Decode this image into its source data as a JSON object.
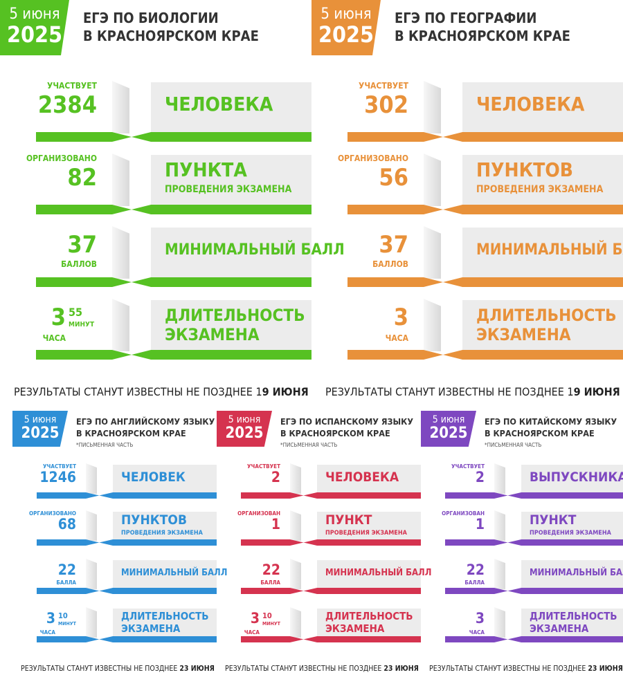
{
  "colors": {
    "green": "#56c122",
    "orange": "#e8913a",
    "blue": "#2e8fd6",
    "red": "#d5334f",
    "purple": "#7e48c0"
  },
  "notice_prefix": "РЕЗУЛЬТАТЫ СТАНУТ ИЗВЕСТНЫ НЕ ПОЗДНЕЕ 1",
  "sections": [
    {
      "badge_date": "5 июня",
      "badge_year": "2025",
      "title_1": "ЕГЭ ПО БИОЛОГИИ",
      "title_2": "В КРАСНОЯРСКОМ КРАЕ",
      "r1_cap": "УЧАСТВУЕТ",
      "r1_num": "2384",
      "r1_big": "ЧЕЛОВЕКА",
      "r2_cap": "ОРГАНИЗОВАНО",
      "r2_num": "82",
      "r2_big": "ПУНКТА",
      "r2_small": "ПРОВЕДЕНИЯ ЭКЗАМЕНА",
      "r3_num": "37",
      "r3_unit": "БАЛЛОВ",
      "r3_big": "МИНИМАЛЬНЫЙ БАЛЛ",
      "r4_num": "3",
      "r4_unit": "ЧАСА",
      "r4_min": "55",
      "r4_min_unit": "МИНУТ",
      "r4_big1": "ДЛИТЕЛЬНОСТЬ",
      "r4_big2": "ЭКЗАМЕНА",
      "note_pre": "РЕЗУЛЬТАТЫ СТАНУТ ИЗВЕСТНЫ НЕ ПОЗДНЕЕ 1",
      "note_b": "9 ИЮНЯ"
    },
    {
      "badge_date": "5 июня",
      "badge_year": "2025",
      "title_1": "ЕГЭ ПО ГЕОГРАФИИ",
      "title_2": "В КРАСНОЯРСКОМ КРАЕ",
      "r1_cap": "УЧАСТВУЕТ",
      "r1_num": "302",
      "r1_big": "ЧЕЛОВЕКА",
      "r2_cap": "ОРГАНИЗОВАНО",
      "r2_num": "56",
      "r2_big": "ПУНКТОВ",
      "r2_small": "ПРОВЕДЕНИЯ ЭКЗАМЕНА",
      "r3_num": "37",
      "r3_unit": "БАЛЛОВ",
      "r3_big": "МИНИМАЛЬНЫЙ БАЛЛ",
      "r4_num": "3",
      "r4_unit": "ЧАСА",
      "r4_min": "",
      "r4_min_unit": "",
      "r4_big1": "ДЛИТЕЛЬНОСТЬ",
      "r4_big2": "ЭКЗАМЕНА",
      "note_pre": "РЕЗУЛЬТАТЫ СТАНУТ ИЗВЕСТНЫ НЕ ПОЗДНЕЕ 1",
      "note_b": "9 ИЮНЯ"
    },
    {
      "badge_date": "5 июня",
      "badge_year": "2025",
      "title_1": "ЕГЭ ПО АНГЛИЙСКОМУ ЯЗЫКУ",
      "title_2": "В КРАСНОЯРСКОМ КРАЕ",
      "sub": "*ПИСЬМЕННАЯ ЧАСТЬ",
      "r1_cap": "УЧАСТВУЕТ",
      "r1_num": "1246",
      "r1_big": "ЧЕЛОВЕК",
      "r2_cap": "ОРГАНИЗОВАНО",
      "r2_num": "68",
      "r2_big": "ПУНКТОВ",
      "r2_small": "ПРОВЕДЕНИЯ ЭКЗАМЕНА",
      "r3_num": "22",
      "r3_unit": "БАЛЛА",
      "r3_big": "МИНИМАЛЬНЫЙ БАЛЛ",
      "r4_num": "3",
      "r4_unit": "ЧАСА",
      "r4_min": "10",
      "r4_min_unit": "МИНУТ",
      "r4_big1": "ДЛИТЕЛЬНОСТЬ",
      "r4_big2": "ЭКЗАМЕНА",
      "note_pre": "РЕЗУЛЬТАТЫ СТАНУТ ИЗВЕСТНЫ НЕ ПОЗДНЕЕ ",
      "note_b": "23 ИЮНЯ"
    },
    {
      "badge_date": "5 июня",
      "badge_year": "2025",
      "title_1": "ЕГЭ ПО ИСПАНСКОМУ ЯЗЫКУ",
      "title_2": "В КРАСНОЯРСКОМ КРАЕ",
      "sub": "*ПИСЬМЕННАЯ ЧАСТЬ",
      "r1_cap": "УЧАСТВУЕТ",
      "r1_num": "2",
      "r1_big": "ЧЕЛОВЕКА",
      "r2_cap": "ОРГАНИЗОВАН",
      "r2_num": "1",
      "r2_big": "ПУНКТ",
      "r2_small": "ПРОВЕДЕНИЯ ЭКЗАМЕНА",
      "r3_num": "22",
      "r3_unit": "БАЛЛА",
      "r3_big": "МИНИМАЛЬНЫЙ БАЛЛ",
      "r4_num": "3",
      "r4_unit": "ЧАСА",
      "r4_min": "10",
      "r4_min_unit": "МИНУТ",
      "r4_big1": "ДЛИТЕЛЬНОСТЬ",
      "r4_big2": "ЭКЗАМЕНА",
      "note_pre": "РЕЗУЛЬТАТЫ СТАНУТ ИЗВЕСТНЫ НЕ ПОЗДНЕЕ ",
      "note_b": "23 ИЮНЯ"
    },
    {
      "badge_date": "5 июня",
      "badge_year": "2025",
      "title_1": "ЕГЭ ПО КИТАЙСКОМУ ЯЗЫКУ",
      "title_2": "В КРАСНОЯРСКОМ КРАЕ",
      "sub": "*ПИСЬМЕННАЯ ЧАСТЬ",
      "r1_cap": "УЧАСТВУЕТ",
      "r1_num": "2",
      "r1_big": "ВЫПУСКНИКА",
      "r2_cap": "ОРГАНИЗОВАН",
      "r2_num": "1",
      "r2_big": "ПУНКТ",
      "r2_small": "ПРОВЕДЕНИЯ ЭКЗАМЕНА",
      "r3_num": "22",
      "r3_unit": "БАЛЛА",
      "r3_big": "МИНИМАЛЬНЫЙ БАЛЛ",
      "r4_num": "3",
      "r4_unit": "ЧАСА",
      "r4_min": "",
      "r4_min_unit": "",
      "r4_big1": "ДЛИТЕЛЬНОСТЬ",
      "r4_big2": "ЭКЗАМЕНА",
      "note_pre": "РЕЗУЛЬТАТЫ СТАНУТ ИЗВЕСТНЫ НЕ ПОЗДНЕЕ ",
      "note_b": "23 ИЮНЯ"
    }
  ]
}
